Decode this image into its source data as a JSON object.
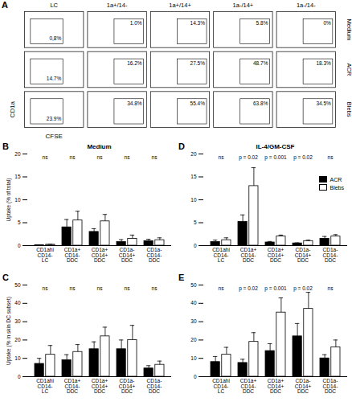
{
  "panel_a": {
    "panel_label": "A",
    "columns": [
      "LC",
      "1a+/14-",
      "1a+/14+",
      "1a-/14+",
      "1a-/14-"
    ],
    "x_label": "CFSE",
    "y_label": "CD1a",
    "rows": [
      {
        "label": "Medium",
        "percentages": [
          0.8,
          1.0,
          14.3,
          5.8,
          0
        ],
        "percentage_labels": [
          "0,8%",
          "1.0%",
          "14.3%",
          "5.8%",
          "0%"
        ]
      },
      {
        "label": "ACR",
        "percentages": [
          14.7,
          16.2,
          27.5,
          48.7,
          18.3
        ],
        "percentage_labels": [
          "14.7%",
          "16.2%",
          "27.5%",
          "48.7%",
          "18.3%"
        ]
      },
      {
        "label": "Blebs",
        "percentages": [
          23.9,
          34.8,
          55.4,
          63.8,
          34.5
        ],
        "percentage_labels": [
          "23.9%",
          "34.8%",
          "55.4%",
          "63.8%",
          "34.5%"
        ]
      }
    ]
  },
  "chart_data": [
    {
      "type": "bar",
      "panel_label": "B",
      "title": "Medium",
      "y_label": "Uptake (% of total)",
      "categories": [
        "CD1ahi\nCD14-\nLC",
        "CD1a+\nCD14-\nDDC",
        "CD1a+\nCD14+\nDDC",
        "CD1a-\nCD14+\nDDC",
        "CD1a-\nCD14-\nDDC"
      ],
      "series": [
        {
          "name": "ACR",
          "color": "#000000",
          "values": [
            0.1,
            4,
            3,
            0.8,
            1
          ],
          "errors": [
            0.05,
            1.7,
            0.7,
            0.5,
            0.4
          ]
        },
        {
          "name": "Blebs",
          "color": "#ffffff",
          "values": [
            0.2,
            5.5,
            5.3,
            1.5,
            1.2
          ],
          "errors": [
            0.1,
            2,
            1.5,
            0.8,
            0.5
          ]
        }
      ],
      "significance": [
        "ns",
        "ns",
        "ns",
        "ns",
        "ns"
      ],
      "ylim": [
        0,
        20
      ],
      "yticks": [
        0,
        5,
        10,
        15,
        20
      ]
    },
    {
      "type": "bar",
      "panel_label": "C",
      "y_label": "Uptake (% in skin DC subset)",
      "categories": [
        "CD1ahi\nCD14-\nLC",
        "CD1a+\nCD14-\nDDC",
        "CD1a+\nCD14+\nDDC",
        "CD1a-\nCD14+\nDDC",
        "CD1a-\nCD14-\nDDC"
      ],
      "series": [
        {
          "name": "ACR",
          "color": "#000000",
          "values": [
            7,
            9,
            15,
            15,
            4.5
          ],
          "errors": [
            3,
            3,
            4,
            5,
            1.5
          ]
        },
        {
          "name": "Blebs",
          "color": "#ffffff",
          "values": [
            12,
            13.5,
            22,
            20,
            6.5
          ],
          "errors": [
            5,
            4,
            5,
            8,
            2
          ]
        }
      ],
      "significance": [
        "ns",
        "ns",
        "ns",
        "ns",
        "ns"
      ],
      "ylim": [
        0,
        50
      ],
      "yticks": [
        0,
        10,
        20,
        30,
        40,
        50
      ]
    },
    {
      "type": "bar",
      "panel_label": "D",
      "title": "IL-4/GM-CSF",
      "legend": "top-right",
      "categories": [
        "CD1ahi\nCD14-\nLC",
        "CD1a+\nCD14-\nDDC",
        "CD1a+\nCD14+\nDDC",
        "CD1a-\nCD14+\nDDC",
        "CD1a-\nCD14-\nDDC"
      ],
      "series": [
        {
          "name": "ACR",
          "color": "#000000",
          "values": [
            0.8,
            5.2,
            0.7,
            0.5,
            1.5
          ],
          "errors": [
            0.4,
            1.5,
            0.2,
            0.1,
            0.5
          ]
        },
        {
          "name": "Blebs",
          "color": "#ffffff",
          "values": [
            1.2,
            13,
            2,
            1,
            2
          ],
          "errors": [
            0.5,
            4,
            0.3,
            0.2,
            0.4
          ]
        }
      ],
      "significance": [
        "ns",
        "p = 0.02",
        "p = 0.001",
        "p = 0.02",
        "ns"
      ],
      "ylim": [
        0,
        20
      ],
      "yticks": [
        0,
        5,
        10,
        15,
        20
      ]
    },
    {
      "type": "bar",
      "panel_label": "E",
      "categories": [
        "CD1ahi\nCD14-\nLC",
        "CD1a+\nCD14-\nDDC",
        "CD1a+\nCD14+\nDDC",
        "CD1a-\nCD14+\nDDC",
        "CD1a-\nCD14-\nDDC"
      ],
      "series": [
        {
          "name": "ACR",
          "color": "#000000",
          "values": [
            8,
            7.5,
            14,
            22,
            10
          ],
          "errors": [
            3,
            2,
            4,
            7,
            2
          ]
        },
        {
          "name": "Blebs",
          "color": "#ffffff",
          "values": [
            12,
            19,
            35,
            37,
            16
          ],
          "errors": [
            4,
            5,
            8,
            9,
            4
          ]
        }
      ],
      "significance": [
        "ns",
        "p = 0.02",
        "p = 0.001",
        "p = 0.02",
        "ns"
      ],
      "ylim": [
        0,
        50
      ],
      "yticks": [
        0,
        10,
        20,
        30,
        40,
        50
      ]
    }
  ]
}
